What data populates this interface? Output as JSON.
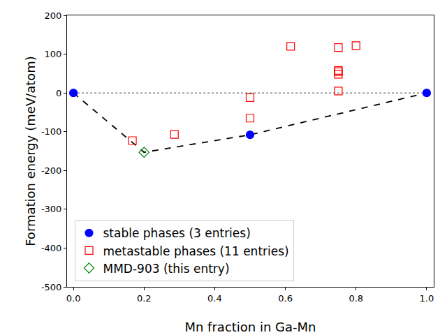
{
  "chart_data": {
    "type": "scatter",
    "xlabel": "Mn fraction in Ga-Mn",
    "ylabel": "Formation energy (meV/atom)",
    "xlim": [
      -0.018,
      1.02
    ],
    "ylim": [
      -500,
      200
    ],
    "xticks": [
      {
        "value": 0,
        "label": "0.0"
      },
      0.2,
      0.4,
      0.6,
      0.8,
      {
        "value": 1,
        "label": "1.0"
      }
    ],
    "yticks": [
      -500,
      -400,
      -300,
      -200,
      -100,
      0,
      100,
      200
    ],
    "grid": false,
    "legend": "lower left",
    "series": [
      {
        "name": "stable phases (3 entries)",
        "color": "#0000ff",
        "marker": "circle",
        "x": [
          0,
          0.5,
          1
        ],
        "values": [
          0,
          -108,
          0
        ]
      },
      {
        "name": "metastable phases (11 entries)",
        "color": "#ff0000",
        "marker": "square-open",
        "x": [
          0.167,
          0.286,
          0.5,
          0.5,
          0.615,
          0.75,
          0.75,
          0.75,
          0.75,
          0.75,
          0.8
        ],
        "values": [
          -123,
          -107,
          -12,
          -65,
          120,
          117,
          58,
          55,
          48,
          5,
          122
        ]
      },
      {
        "name": "MMD-903 (this entry)",
        "color": "#008000",
        "marker": "diamond-open",
        "x": [
          0.2
        ],
        "values": [
          -153
        ]
      }
    ],
    "hull": {
      "x": [
        0,
        0.2,
        0.5,
        1
      ],
      "values": [
        0,
        -153,
        -108,
        0
      ],
      "color": "#000000",
      "line_style": "dash"
    },
    "reference_line": {
      "x": [
        0,
        1
      ],
      "values": [
        0,
        0
      ],
      "color": "#808080",
      "line_style": "dot"
    }
  }
}
